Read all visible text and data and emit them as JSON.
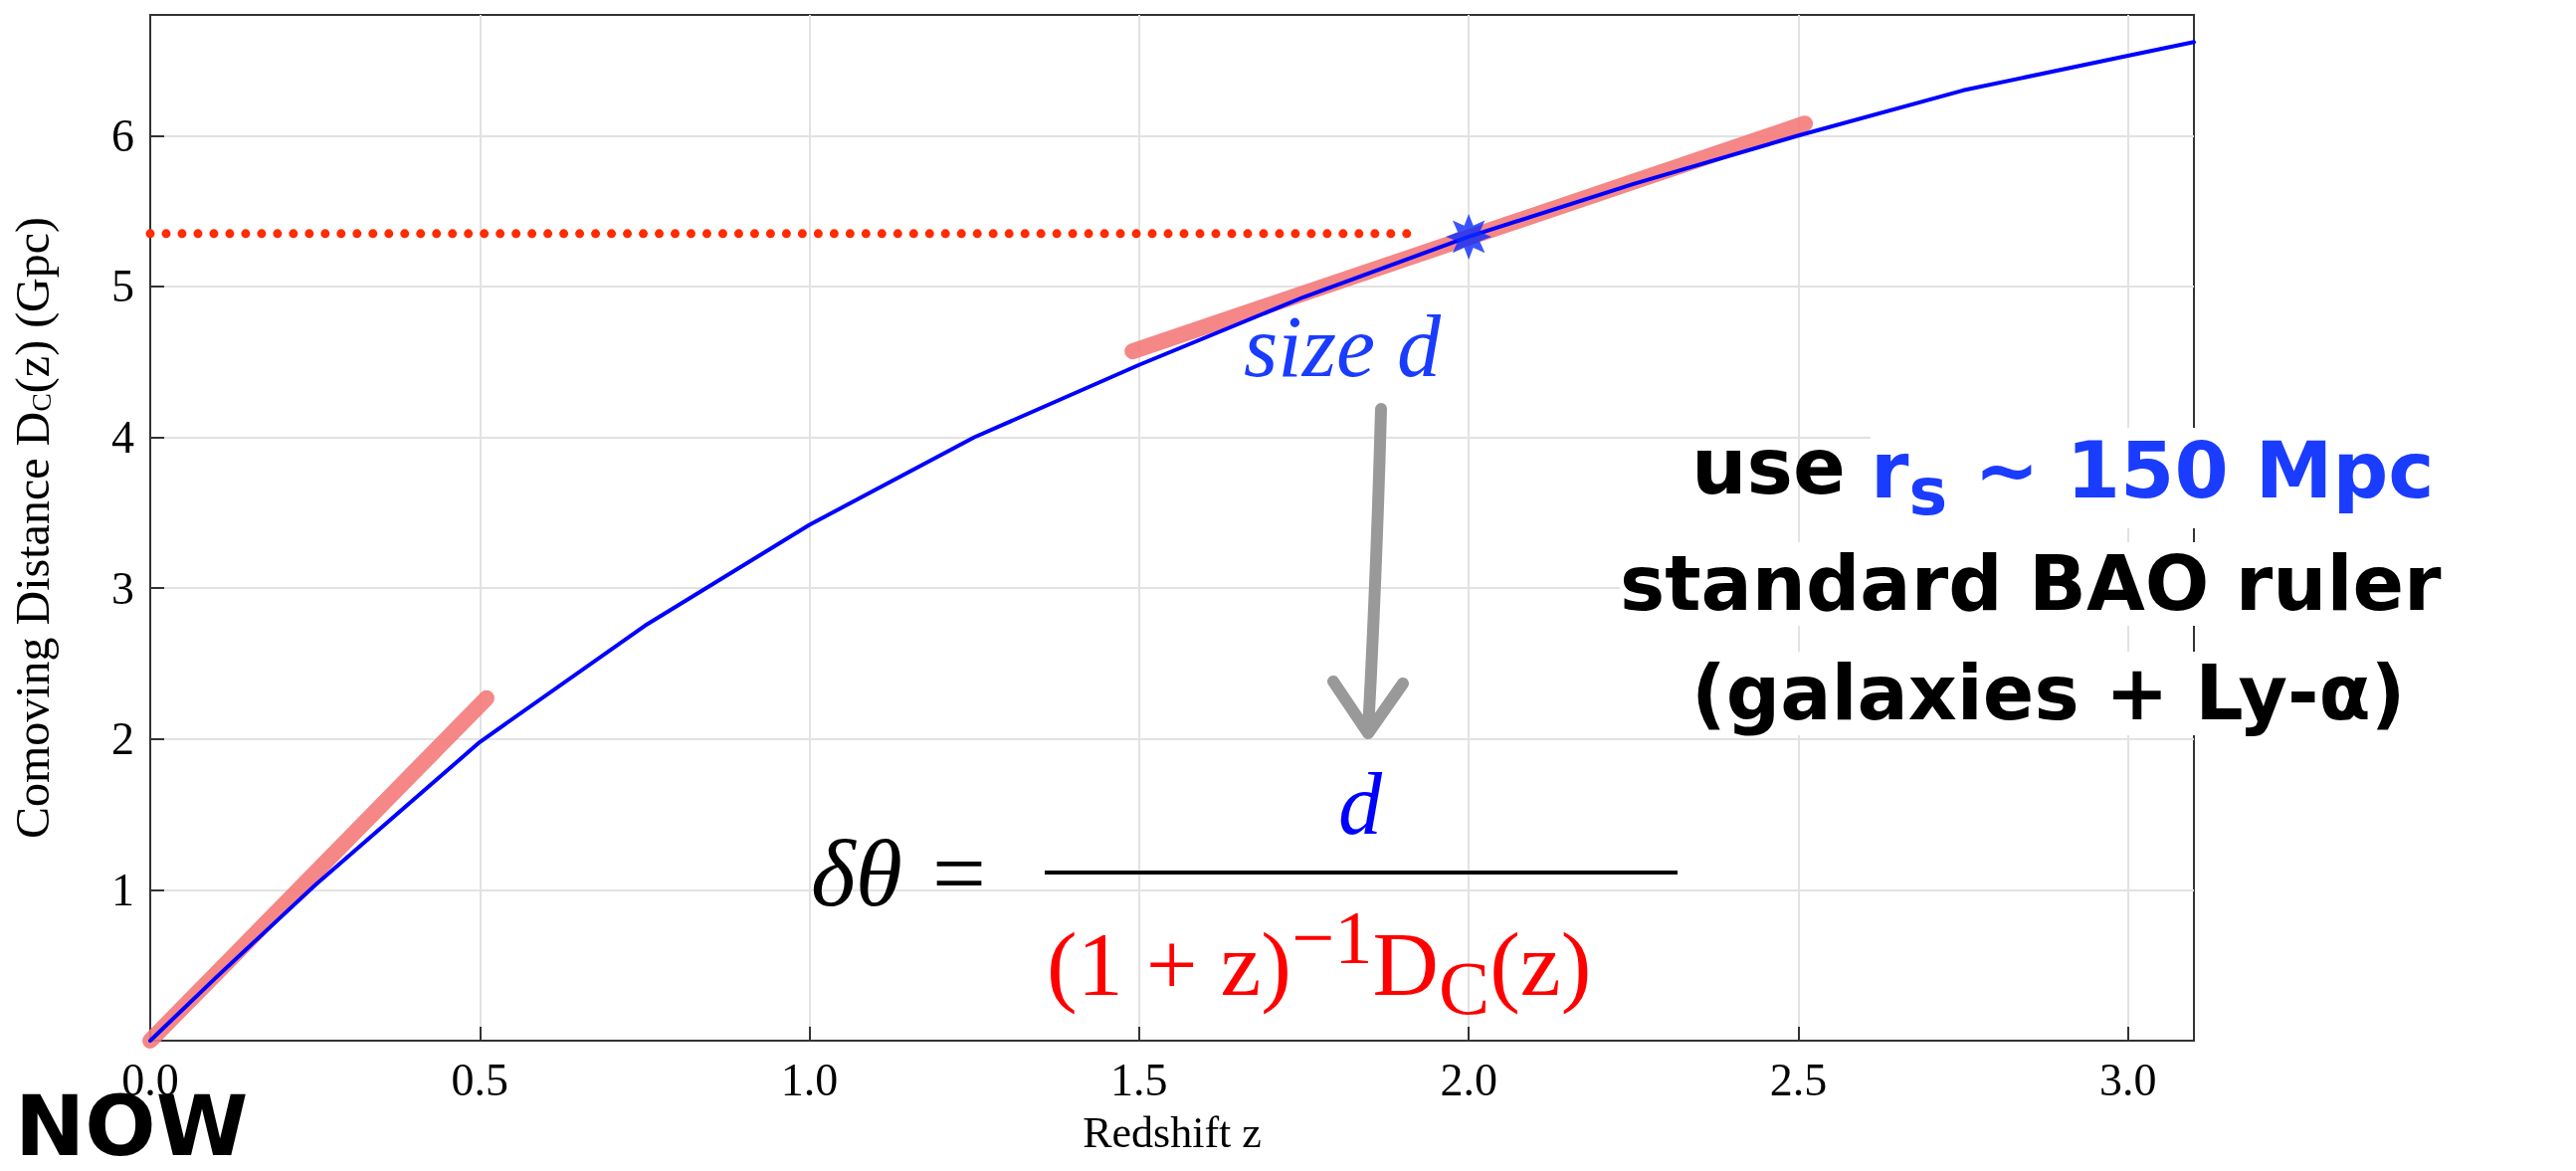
{
  "chart_data": {
    "type": "line",
    "xlabel": "Redshift z",
    "ylabel": "Comoving Distance D$_{C}$(z) (Gpc)",
    "xlim": [
      0,
      3.1
    ],
    "ylim": [
      0,
      6.8
    ],
    "xticks": [
      {
        "value": 0,
        "label": "0.0"
      },
      {
        "value": 0.5,
        "label": "0.5"
      },
      {
        "value": 1,
        "label": "1.0"
      },
      {
        "value": 1.5,
        "label": "1.5"
      },
      {
        "value": 2,
        "label": "2.0"
      },
      {
        "value": 2.5,
        "label": "2.5"
      },
      {
        "value": 3,
        "label": "3.0"
      }
    ],
    "yticks": [
      1,
      2,
      3,
      4,
      5,
      6
    ],
    "grid": true,
    "marker": "none",
    "series": [
      {
        "color": "#0000ff",
        "x": [
          0,
          0.1,
          0.25,
          0.5,
          0.75,
          1.0,
          1.25,
          1.5,
          1.75,
          2.0,
          2.25,
          2.5,
          2.75,
          3.0,
          3.1
        ],
        "values": [
          0,
          0.42,
          1.03,
          1.98,
          2.75,
          3.42,
          4.0,
          4.48,
          4.93,
          5.33,
          5.68,
          6.0,
          6.3,
          6.53,
          6.62
        ]
      },
      {
        "color": "#f47a7a",
        "x": [
          0,
          0.51
        ],
        "values": [
          0,
          2.27
        ]
      },
      {
        "color": "#f47a7a",
        "x": [
          1.49,
          2.51
        ],
        "values": [
          4.57,
          6.08
        ]
      },
      {
        "color": "#ff2a00",
        "line_style": "dotted",
        "x": [
          0,
          1.93
        ],
        "values": [
          5.35,
          5.35
        ]
      },
      {
        "type": "scatter",
        "marker": "star",
        "color": "#0a2bff",
        "x": [
          2
        ],
        "values": [
          5.33
        ]
      }
    ],
    "annotations": [
      "size d",
      "d",
      "δθ =",
      "(1 + z)$^{−1}$D$_{C}$(z)",
      "use",
      "r$_{s}$ ~ 150 Mpc",
      "standard BAO ruler",
      "(galaxies + Ly-α)",
      "NOW"
    ]
  }
}
